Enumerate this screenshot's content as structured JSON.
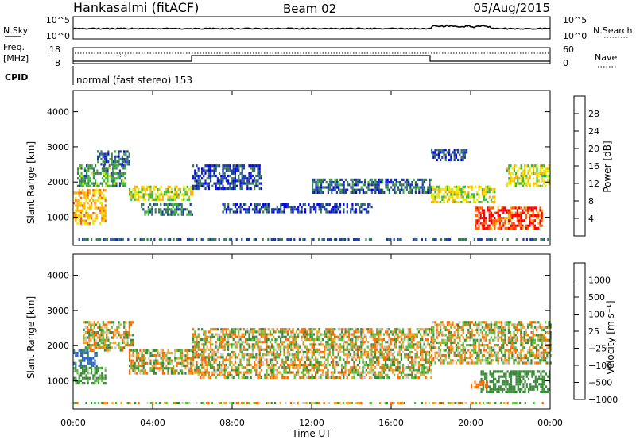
{
  "header": {
    "station": "Hankasalmi (fitACF)",
    "beam": "Beam 02",
    "date": "05/Aug/2015"
  },
  "nsky_panel": {
    "left_label": "N.Sky",
    "right_label": "N.Search",
    "ticks": [
      "10^5",
      "10^0"
    ],
    "right_ticks": [
      "10^5",
      "10^0"
    ]
  },
  "freq_panel": {
    "left_label_line1": "Freq.",
    "left_label_line2": "[MHz]",
    "left_ticks": [
      "18",
      "8"
    ],
    "right_label": "Nave",
    "right_ticks": [
      "60",
      "0"
    ]
  },
  "cpid_panel": {
    "label": "CPID",
    "program": "normal (fast stereo) 153"
  },
  "power_panel": {
    "ylabel": "Slant Range [km]",
    "yticks": [
      "4000",
      "3000",
      "2000",
      "1000"
    ],
    "colorbar_label": "Power [dB]",
    "colorbar_ticks": [
      "28",
      "24",
      "20",
      "16",
      "12",
      "8",
      "4"
    ],
    "colorbar_colors": [
      "#ff0000",
      "#ff6000",
      "#ffb000",
      "#e8e800",
      "#38b838",
      "#3a7a5a",
      "#1a3aa0",
      "#0000ff"
    ]
  },
  "velocity_panel": {
    "ylabel": "Slant Range [km]",
    "yticks": [
      "4000",
      "3000",
      "2000",
      "1000"
    ],
    "colorbar_label": "Velocity [m s⁻¹]",
    "colorbar_ticks": [
      "1000",
      "500",
      "100",
      "25",
      "−25",
      "−100",
      "−500",
      "−1000"
    ],
    "colorbar_colors": [
      "#1c3a9e",
      "#2a64c4",
      "#3a8a3a",
      "#59c33a",
      "#c8c8c0",
      "#f5a020",
      "#ff6a00",
      "#ff2020"
    ]
  },
  "xaxis": {
    "ticks": [
      "00:00",
      "04:00",
      "08:00",
      "12:00",
      "16:00",
      "20:00",
      "00:00"
    ],
    "label": "Time UT"
  },
  "chart_data": [
    {
      "type": "heatmap",
      "title": "Power",
      "xlabel": "Time UT",
      "ylabel": "Slant Range [km]",
      "xlim": [
        0,
        24
      ],
      "ylim": [
        200,
        4600
      ],
      "zlabel": "Power [dB]",
      "zlim": [
        0,
        32
      ],
      "features": [
        {
          "t": [
            0.0,
            1.6
          ],
          "range": [
            850,
            1800
          ],
          "dB": 22
        },
        {
          "t": [
            0.2,
            2.6
          ],
          "range": [
            1900,
            2500
          ],
          "dB": 12
        },
        {
          "t": [
            1.2,
            2.8
          ],
          "range": [
            2500,
            2900
          ],
          "dB": 8
        },
        {
          "t": [
            2.8,
            6.0
          ],
          "range": [
            1500,
            1900
          ],
          "dB": 18
        },
        {
          "t": [
            3.4,
            6.0
          ],
          "range": [
            1100,
            1400
          ],
          "dB": 10
        },
        {
          "t": [
            6.0,
            9.5
          ],
          "range": [
            1800,
            2500
          ],
          "dB": 6
        },
        {
          "t": [
            7.5,
            15.0
          ],
          "range": [
            1150,
            1400
          ],
          "dB": 5
        },
        {
          "t": [
            12.0,
            18.0
          ],
          "range": [
            1700,
            2100
          ],
          "dB": 8
        },
        {
          "t": [
            18.0,
            19.8
          ],
          "range": [
            2600,
            2950
          ],
          "dB": 6
        },
        {
          "t": [
            18.0,
            21.2
          ],
          "range": [
            1400,
            1900
          ],
          "dB": 18
        },
        {
          "t": [
            20.2,
            23.6
          ],
          "range": [
            700,
            1300
          ],
          "dB": 28
        },
        {
          "t": [
            21.8,
            24.0
          ],
          "range": [
            1900,
            2500
          ],
          "dB": 18
        }
      ]
    },
    {
      "type": "heatmap",
      "title": "Velocity",
      "xlabel": "Time UT",
      "ylabel": "Slant Range [km]",
      "xlim": [
        0,
        24
      ],
      "ylim": [
        200,
        4600
      ],
      "zlabel": "Velocity [m s⁻¹]",
      "zlim": [
        -1000,
        1000
      ],
      "features": [
        {
          "t": [
            0.0,
            1.6
          ],
          "range": [
            900,
            1400
          ],
          "v": 200
        },
        {
          "t": [
            0.0,
            1.2
          ],
          "range": [
            1400,
            1900
          ],
          "v": 600
        },
        {
          "t": [
            0.5,
            3.0
          ],
          "range": [
            1900,
            2700
          ],
          "v": 0
        },
        {
          "t": [
            2.8,
            6.0
          ],
          "range": [
            1200,
            1900
          ],
          "v": 0
        },
        {
          "t": [
            6.0,
            18.0
          ],
          "range": [
            1100,
            2500
          ],
          "v": 0
        },
        {
          "t": [
            18.0,
            24.0
          ],
          "range": [
            1500,
            2700
          ],
          "v": 0
        },
        {
          "t": [
            20.5,
            24.0
          ],
          "range": [
            700,
            1300
          ],
          "v": 300
        },
        {
          "t": [
            20.0,
            20.8
          ],
          "range": [
            800,
            1000
          ],
          "v": -300
        }
      ]
    }
  ]
}
